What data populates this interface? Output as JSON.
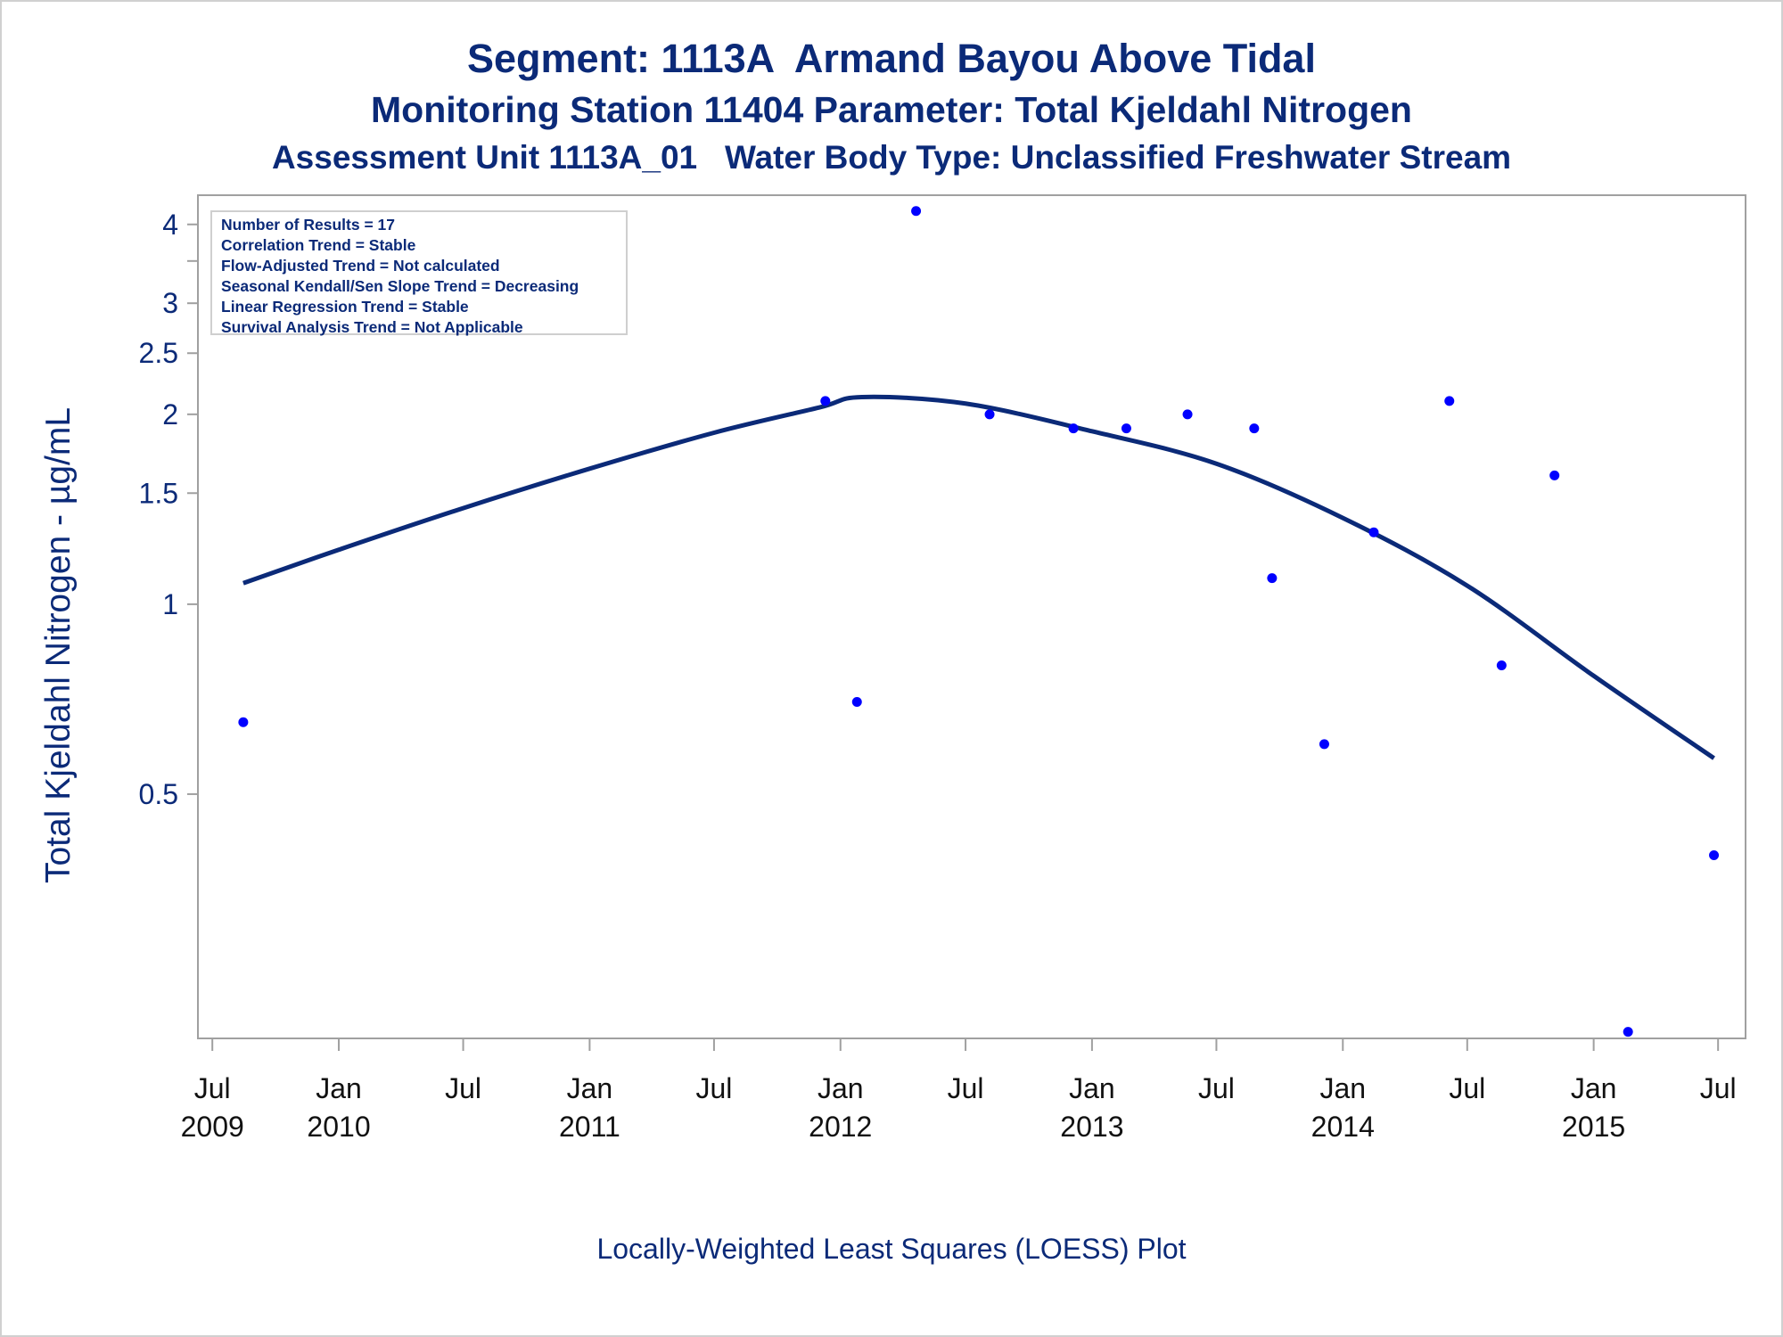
{
  "titles": {
    "line1": "Segment: 1113A  Armand Bayou Above Tidal",
    "line2": "Monitoring Station 11404 Parameter: Total Kjeldahl Nitrogen",
    "line3": "Assessment Unit 1113A_01   Water Body Type: Unclassified Freshwater Stream"
  },
  "footnote": "Locally-Weighted Least Squares (LOESS) Plot",
  "info_box": [
    "Number of Results = 17",
    "Correlation Trend = Stable",
    "Flow-Adjusted Trend = Not calculated",
    "Seasonal Kendall/Sen Slope Trend = Decreasing",
    "Linear Regression Trend = Stable",
    "Survival Analysis Trend = Not Applicable"
  ],
  "colors": {
    "text": "#0b2a78",
    "points": "#0000ff",
    "loess_line": "#0b2a78",
    "frame": "#a0a0a0"
  },
  "chart_data": {
    "type": "scatter",
    "title": "Segment: 1113A  Armand Bayou Above Tidal",
    "ylabel": "Total Kjeldahl Nitrogen -  µg/mL",
    "yscale": "log",
    "ylim": [
      0.205,
      4.45
    ],
    "xlim": [
      "2009-06-10",
      "2015-08-10"
    ],
    "x_ticks": [
      {
        "date": "2009-07-01",
        "label": [
          "Jul",
          "2009"
        ]
      },
      {
        "date": "2010-01-01",
        "label": [
          "Jan",
          "2010"
        ]
      },
      {
        "date": "2010-07-01",
        "label": [
          "Jul",
          ""
        ]
      },
      {
        "date": "2011-01-01",
        "label": [
          "Jan",
          "2011"
        ]
      },
      {
        "date": "2011-07-01",
        "label": [
          "Jul",
          ""
        ]
      },
      {
        "date": "2012-01-01",
        "label": [
          "Jan",
          "2012"
        ]
      },
      {
        "date": "2012-07-01",
        "label": [
          "Jul",
          ""
        ]
      },
      {
        "date": "2013-01-01",
        "label": [
          "Jan",
          "2013"
        ]
      },
      {
        "date": "2013-07-01",
        "label": [
          "Jul",
          ""
        ]
      },
      {
        "date": "2014-01-01",
        "label": [
          "Jan",
          "2014"
        ]
      },
      {
        "date": "2014-07-01",
        "label": [
          "Jul",
          ""
        ]
      },
      {
        "date": "2015-01-01",
        "label": [
          "Jan",
          "2015"
        ]
      },
      {
        "date": "2015-07-01",
        "label": [
          "Jul",
          ""
        ]
      }
    ],
    "y_ticks": [
      {
        "value": 0.5,
        "label": "0.5"
      },
      {
        "value": 1,
        "label": "1"
      },
      {
        "value": 1.5,
        "label": "1.5"
      },
      {
        "value": 2,
        "label": "2"
      },
      {
        "value": 2.5,
        "label": "2.5"
      },
      {
        "value": 3,
        "label": "3"
      },
      {
        "value": 3.5,
        "label": ""
      },
      {
        "value": 4,
        "label": "4"
      }
    ],
    "series": [
      {
        "kind": "points",
        "data": [
          {
            "x": "2009-08-15",
            "y": 0.65
          },
          {
            "x": "2011-12-10",
            "y": 2.1
          },
          {
            "x": "2012-01-25",
            "y": 0.7
          },
          {
            "x": "2012-04-20",
            "y": 4.2
          },
          {
            "x": "2012-08-05",
            "y": 2.0
          },
          {
            "x": "2012-12-05",
            "y": 1.9
          },
          {
            "x": "2013-02-20",
            "y": 1.9
          },
          {
            "x": "2013-05-20",
            "y": 2.0
          },
          {
            "x": "2013-08-25",
            "y": 1.9
          },
          {
            "x": "2013-09-20",
            "y": 1.1
          },
          {
            "x": "2013-12-05",
            "y": 0.6
          },
          {
            "x": "2014-02-15",
            "y": 1.3
          },
          {
            "x": "2014-06-05",
            "y": 2.1
          },
          {
            "x": "2014-08-20",
            "y": 0.8
          },
          {
            "x": "2014-11-05",
            "y": 1.6
          },
          {
            "x": "2015-02-20",
            "y": 0.21
          },
          {
            "x": "2015-06-25",
            "y": 0.4
          }
        ]
      },
      {
        "kind": "line",
        "data": [
          {
            "x": "2009-08-15",
            "y": 1.08
          },
          {
            "x": "2010-01-01",
            "y": 1.22
          },
          {
            "x": "2010-07-01",
            "y": 1.42
          },
          {
            "x": "2011-01-01",
            "y": 1.64
          },
          {
            "x": "2011-07-01",
            "y": 1.87
          },
          {
            "x": "2011-12-01",
            "y": 2.05
          },
          {
            "x": "2012-02-01",
            "y": 2.13
          },
          {
            "x": "2012-07-01",
            "y": 2.08
          },
          {
            "x": "2013-01-01",
            "y": 1.88
          },
          {
            "x": "2013-07-01",
            "y": 1.67
          },
          {
            "x": "2014-01-01",
            "y": 1.37
          },
          {
            "x": "2014-07-01",
            "y": 1.07
          },
          {
            "x": "2015-01-01",
            "y": 0.77
          },
          {
            "x": "2015-06-25",
            "y": 0.57
          }
        ]
      }
    ]
  }
}
